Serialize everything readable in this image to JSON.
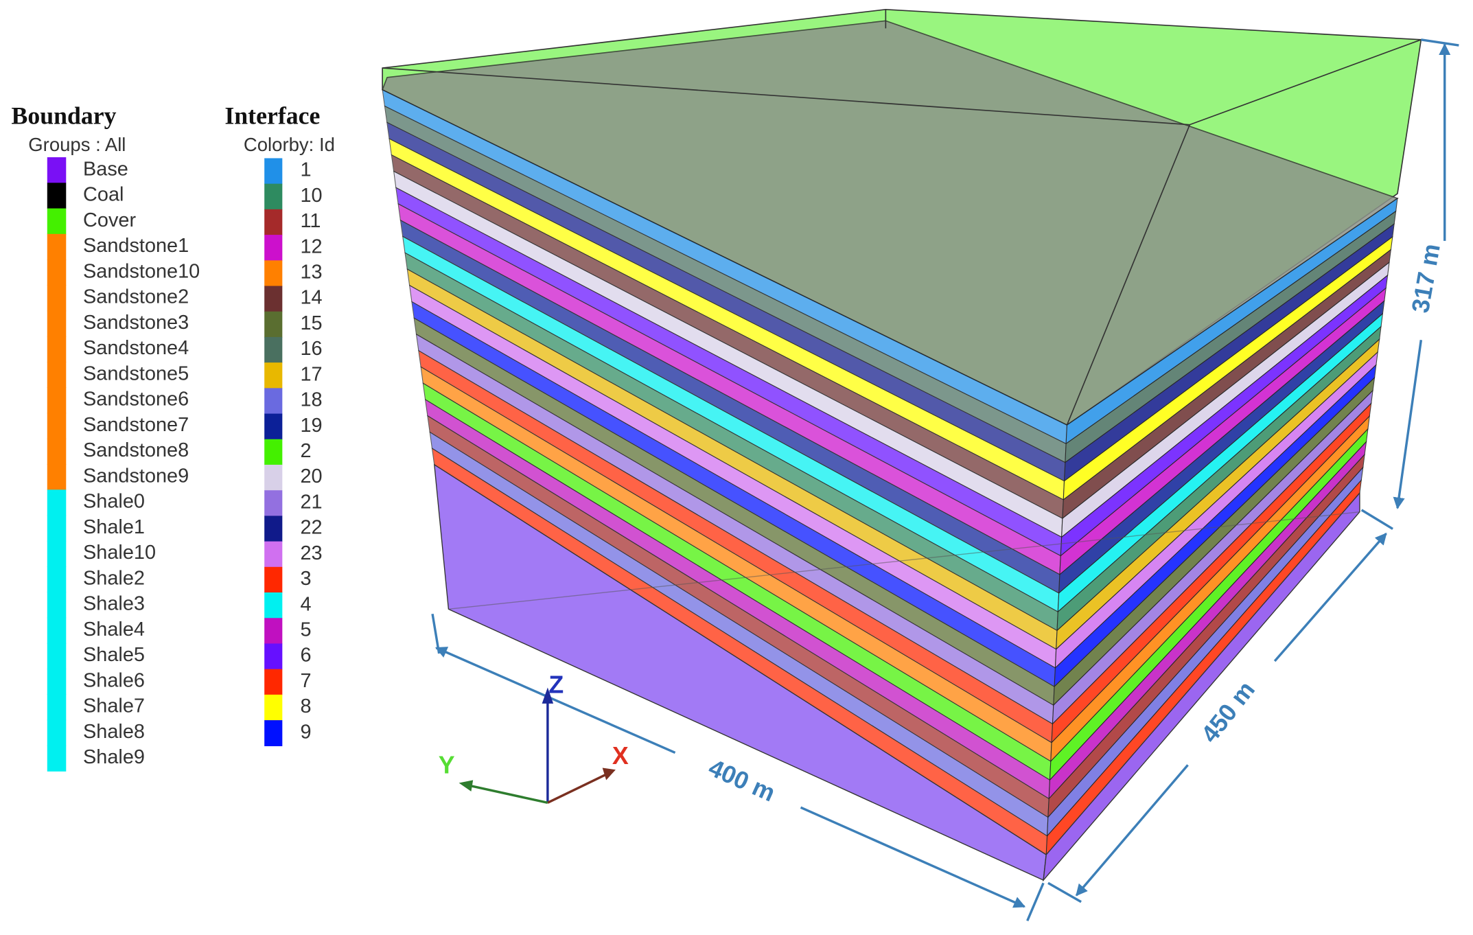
{
  "boundary": {
    "title": "Boundary",
    "subtitle": "Groups : All",
    "items": [
      {
        "label": "Base",
        "color": "#7a10f5"
      },
      {
        "label": "Coal",
        "color": "#000000"
      },
      {
        "label": "Cover",
        "color": "#44f000"
      },
      {
        "label": "Sandstone1",
        "color": "#ff8000"
      },
      {
        "label": "Sandstone10",
        "color": "#ff8000"
      },
      {
        "label": "Sandstone2",
        "color": "#ff8000"
      },
      {
        "label": "Sandstone3",
        "color": "#ff8000"
      },
      {
        "label": "Sandstone4",
        "color": "#ff8000"
      },
      {
        "label": "Sandstone5",
        "color": "#ff8000"
      },
      {
        "label": "Sandstone6",
        "color": "#ff8000"
      },
      {
        "label": "Sandstone7",
        "color": "#ff8000"
      },
      {
        "label": "Sandstone8",
        "color": "#ff8000"
      },
      {
        "label": "Sandstone9",
        "color": "#ff8000"
      },
      {
        "label": "Shale0",
        "color": "#00f0f0"
      },
      {
        "label": "Shale1",
        "color": "#00f0f0"
      },
      {
        "label": "Shale10",
        "color": "#00f0f0"
      },
      {
        "label": "Shale2",
        "color": "#00f0f0"
      },
      {
        "label": "Shale3",
        "color": "#00f0f0"
      },
      {
        "label": "Shale4",
        "color": "#00f0f0"
      },
      {
        "label": "Shale5",
        "color": "#00f0f0"
      },
      {
        "label": "Shale6",
        "color": "#00f0f0"
      },
      {
        "label": "Shale7",
        "color": "#00f0f0"
      },
      {
        "label": "Shale8",
        "color": "#00f0f0"
      },
      {
        "label": "Shale9",
        "color": "#00f0f0"
      }
    ]
  },
  "interface": {
    "title": "Interface",
    "subtitle": "Colorby: Id",
    "items": [
      {
        "label": "1",
        "color": "#2090e8"
      },
      {
        "label": "10",
        "color": "#2e8b60"
      },
      {
        "label": "11",
        "color": "#a52a2a"
      },
      {
        "label": "12",
        "color": "#cc10cc"
      },
      {
        "label": "13",
        "color": "#ff8000"
      },
      {
        "label": "14",
        "color": "#6b3030"
      },
      {
        "label": "15",
        "color": "#5a6e30"
      },
      {
        "label": "16",
        "color": "#4a7060"
      },
      {
        "label": "17",
        "color": "#e8b800"
      },
      {
        "label": "18",
        "color": "#6a6ae0"
      },
      {
        "label": "19",
        "color": "#0c2098"
      },
      {
        "label": "2",
        "color": "#44f000"
      },
      {
        "label": "20",
        "color": "#d8d0e8"
      },
      {
        "label": "21",
        "color": "#9370e0"
      },
      {
        "label": "22",
        "color": "#101a8a"
      },
      {
        "label": "23",
        "color": "#d070f0"
      },
      {
        "label": "3",
        "color": "#ff2800"
      },
      {
        "label": "4",
        "color": "#00f0f0"
      },
      {
        "label": "5",
        "color": "#c010c0"
      },
      {
        "label": "6",
        "color": "#6610ff"
      },
      {
        "label": "7",
        "color": "#ff2800"
      },
      {
        "label": "8",
        "color": "#ffff00"
      },
      {
        "label": "9",
        "color": "#0010ff"
      }
    ]
  },
  "dimensions": {
    "height": "317 m",
    "length": "400 m",
    "width": "450 m"
  },
  "axes": {
    "x": "X",
    "y": "Y",
    "z": "Z"
  }
}
